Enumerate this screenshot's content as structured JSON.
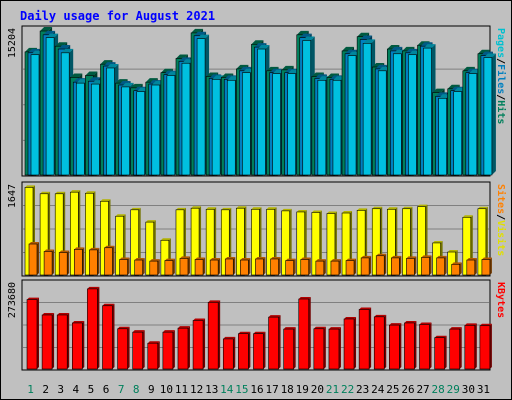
{
  "chart_data": {
    "type": "bar",
    "title": "Daily usage for August 2021",
    "categories": [
      "1",
      "2",
      "3",
      "4",
      "5",
      "6",
      "7",
      "8",
      "9",
      "10",
      "11",
      "12",
      "13",
      "14",
      "15",
      "16",
      "17",
      "18",
      "19",
      "20",
      "21",
      "22",
      "23",
      "24",
      "25",
      "26",
      "27",
      "28",
      "29",
      "30",
      "31"
    ],
    "weekend_days": [
      1,
      7,
      8,
      14,
      15,
      21,
      22,
      28,
      29
    ],
    "panels": [
      {
        "id": "hits_files_pages",
        "ymax_label": "15204",
        "ymax": 15204,
        "axis_labels": [
          {
            "text": "Pages",
            "color": "#00c0d0"
          },
          {
            "text": "/",
            "color": "#000000"
          },
          {
            "text": "Files",
            "color": "#0080c0"
          },
          {
            "text": "/",
            "color": "#000000"
          },
          {
            "text": "Hits",
            "color": "#00805c"
          }
        ],
        "series": [
          {
            "name": "Hits",
            "color": "#00805c",
            "values": [
              13000,
              15200,
              13600,
              10300,
              10500,
              11700,
              9700,
              9200,
              9800,
              10800,
              12300,
              15000,
              10400,
              10300,
              11200,
              13800,
              11000,
              11100,
              14800,
              10400,
              10300,
              13100,
              14600,
              11400,
              13300,
              13100,
              13700,
              8700,
              9100,
              11000,
              12800
            ]
          },
          {
            "name": "Files",
            "color": "#0080c0",
            "values": [
              12900,
              14800,
              13300,
              9800,
              9900,
              11500,
              9500,
              8900,
              9600,
              10600,
              12000,
              14700,
              10200,
              10100,
              11000,
              13500,
              10800,
              10800,
              14500,
              10200,
              10100,
              12800,
              14300,
              11200,
              13100,
              12900,
              13600,
              8300,
              8900,
              10800,
              12600
            ]
          },
          {
            "name": "Pages",
            "color": "#00c0e0",
            "values": [
              12700,
              14500,
              12900,
              9700,
              9600,
              11300,
              9300,
              8800,
              9500,
              10500,
              11800,
              14400,
              10100,
              10000,
              10800,
              13300,
              10700,
              10700,
              14200,
              10000,
              10000,
              12600,
              13900,
              11000,
              12800,
              12700,
              13400,
              8100,
              8800,
              10700,
              12400
            ]
          }
        ]
      },
      {
        "id": "visits_sites",
        "ymax_label": "1647",
        "ymax": 1647,
        "axis_labels": [
          {
            "text": "Sites",
            "color": "#ff8000"
          },
          {
            "text": "/",
            "color": "#000000"
          },
          {
            "text": "Visits",
            "color": "#e0e000"
          }
        ],
        "series": [
          {
            "name": "Visits",
            "color": "#ffff00",
            "values": [
              1640,
              1520,
              1520,
              1550,
              1530,
              1380,
              1100,
              1220,
              990,
              650,
              1220,
              1250,
              1230,
              1220,
              1250,
              1230,
              1230,
              1200,
              1180,
              1170,
              1150,
              1160,
              1210,
              1240,
              1230,
              1240,
              1280,
              600,
              430,
              1080,
              1240
            ]
          },
          {
            "name": "Sites",
            "color": "#ff8000",
            "values": [
              580,
              440,
              420,
              480,
              470,
              510,
              290,
              280,
              260,
              270,
              310,
              290,
              280,
              300,
              280,
              300,
              300,
              270,
              290,
              260,
              260,
              270,
              320,
              360,
              320,
              310,
              330,
              320,
              200,
              280,
              290
            ]
          }
        ]
      },
      {
        "id": "kbytes",
        "ymax_label": "273680",
        "ymax": 273680,
        "axis_labels": [
          {
            "text": "KBytes",
            "color": "#ff0000"
          }
        ],
        "series": [
          {
            "name": "KBytes",
            "color": "#ff0000",
            "values": [
              226000,
              176000,
              176000,
              150000,
              261000,
              206000,
              131000,
              120000,
              84000,
              120000,
              133000,
              158000,
              217000,
              98000,
              115000,
              115000,
              169000,
              130000,
              228000,
              131000,
              130000,
              163000,
              194000,
              170000,
              143000,
              150000,
              145000,
              102000,
              130000,
              142000,
              141000
            ]
          }
        ]
      }
    ]
  }
}
